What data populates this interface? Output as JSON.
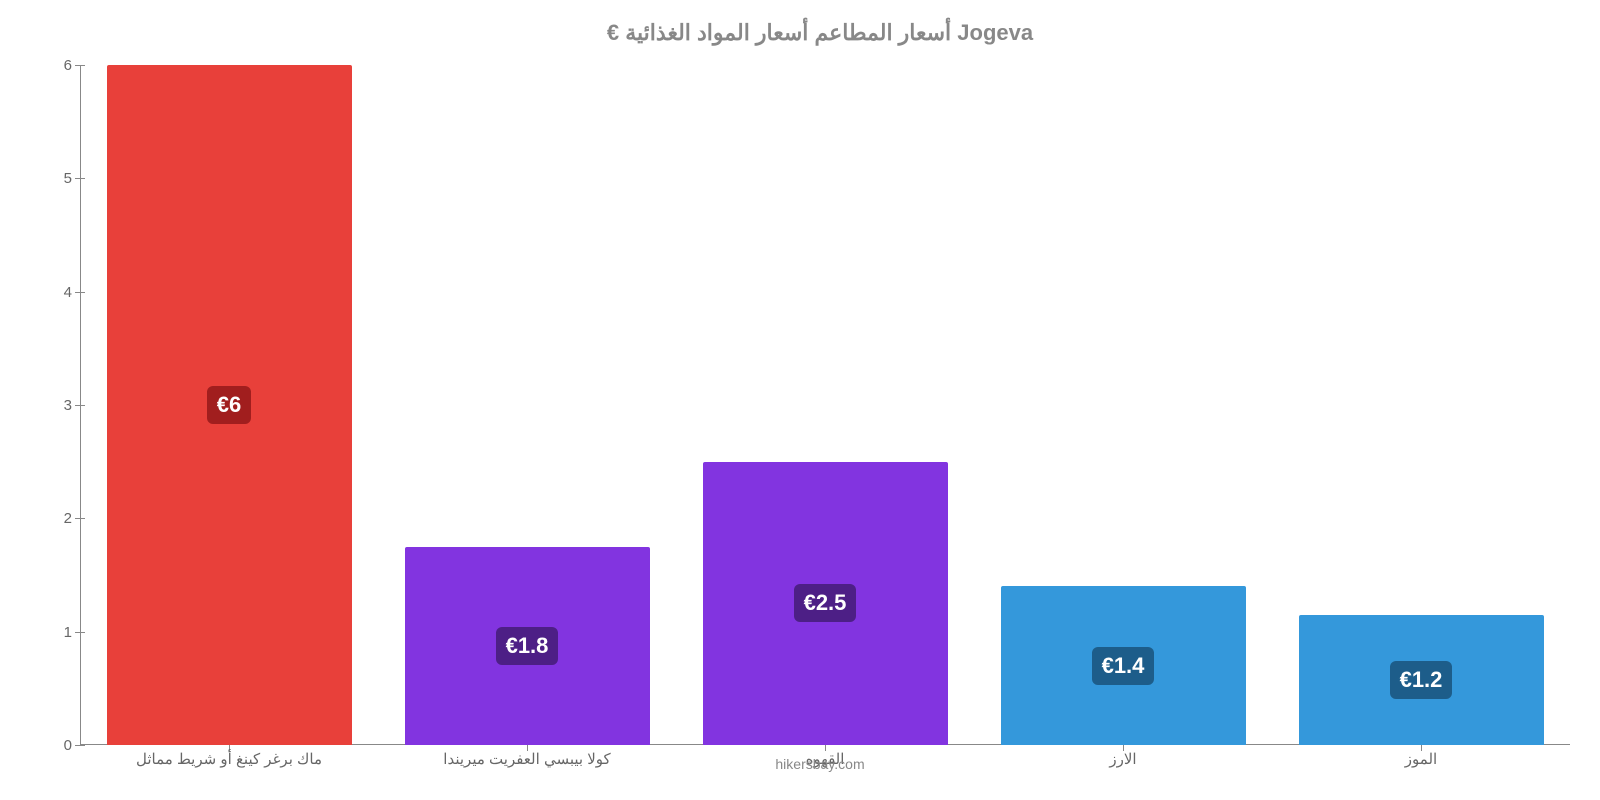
{
  "chart": {
    "type": "bar",
    "title": "Jogeva أسعار المطاعم أسعار المواد الغذائية €",
    "title_fontsize": 22,
    "title_color": "#888888",
    "background_color": "#ffffff",
    "attribution": "hikersbay.com",
    "attribution_color": "#888888",
    "y_axis": {
      "min": 0,
      "max": 6,
      "ticks": [
        0,
        1,
        2,
        3,
        4,
        5,
        6
      ],
      "label_color": "#666666",
      "label_fontsize": 15
    },
    "x_axis": {
      "label_color": "#666666",
      "label_fontsize": 15
    },
    "axis_line_color": "#888888",
    "bar_width_ratio": 0.87,
    "bars": [
      {
        "category": "ماك برغر كينغ أو شريط مماثل",
        "value": 6,
        "display_value": "€6",
        "bar_color": "#e8403a",
        "label_bg_color": "#a11e1e",
        "label_text_color": "#ffffff"
      },
      {
        "category": "كولا بيبسي العفريت ميريندا",
        "value": 1.75,
        "display_value": "€1.8",
        "bar_color": "#8234e0",
        "label_bg_color": "#4d1f86",
        "label_text_color": "#ffffff"
      },
      {
        "category": "القهوه",
        "value": 2.5,
        "display_value": "€2.5",
        "bar_color": "#8234e0",
        "label_bg_color": "#4d1f86",
        "label_text_color": "#ffffff"
      },
      {
        "category": "الارز",
        "value": 1.4,
        "display_value": "€1.4",
        "bar_color": "#3498db",
        "label_bg_color": "#1d5d8a",
        "label_text_color": "#ffffff"
      },
      {
        "category": "الموز",
        "value": 1.15,
        "display_value": "€1.2",
        "bar_color": "#3498db",
        "label_bg_color": "#1d5d8a",
        "label_text_color": "#ffffff"
      }
    ]
  }
}
